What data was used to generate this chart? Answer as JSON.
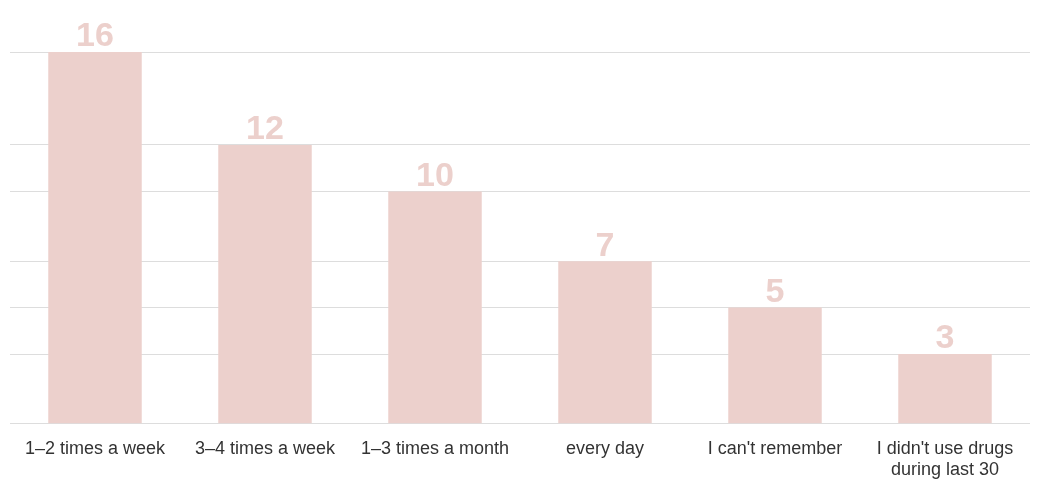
{
  "chart_data": {
    "type": "bar",
    "categories": [
      "1–2 times a week",
      "3–4 times a week",
      "1–3 times a month",
      "every day",
      "I can't remember",
      "I didn't use drugs during last 30"
    ],
    "values": [
      16,
      12,
      10,
      7,
      5,
      3
    ],
    "color": "#ecd0cc",
    "ylim": [
      0,
      16
    ],
    "yticks": [
      {
        "value": 0,
        "label": null
      },
      {
        "value": 3,
        "label": null
      },
      {
        "value": 5,
        "label": null
      },
      {
        "value": 7,
        "label": null
      },
      {
        "value": 10,
        "label": null
      },
      {
        "value": 12,
        "label": null
      },
      {
        "value": 16,
        "label": null
      }
    ],
    "grid": "y",
    "data_labels": true,
    "tick_labels": "x",
    "legend": false
  }
}
